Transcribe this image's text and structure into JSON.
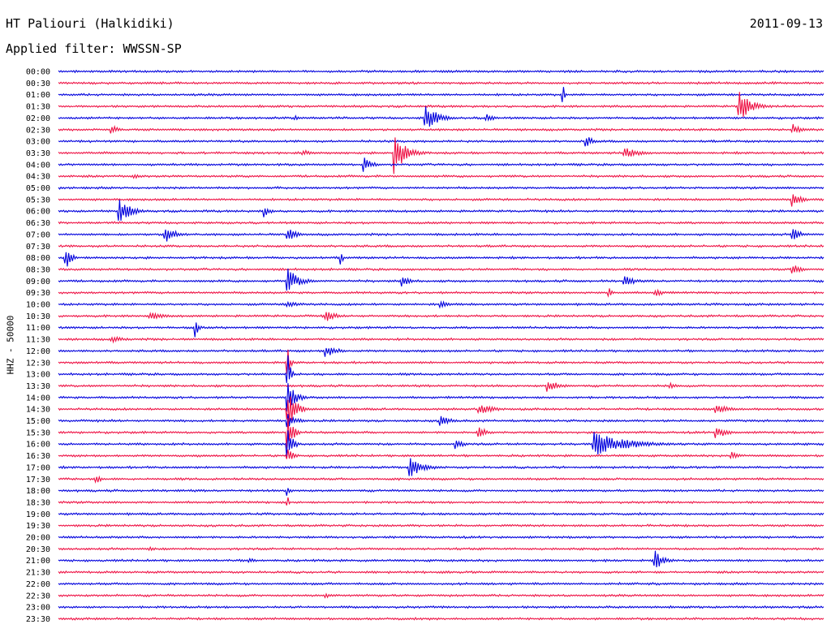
{
  "header": {
    "station": "HT Paliouri (Halkidiki)",
    "date": "2011-09-13",
    "filter": "Applied filter: WWSSN-SP"
  },
  "colors": {
    "trace_a": "#0000dd",
    "trace_b": "#ee1144",
    "text": "#000000",
    "background": "#ffffff"
  },
  "chart_data": {
    "type": "line",
    "title": "HT Paliouri (Halkidiki)",
    "subtitle": "Applied filter: WWSSN-SP",
    "date": "2011-09-13",
    "ylabel": "HHZ - 50000",
    "xlabel": "",
    "grid": false,
    "legend": "none",
    "traces": [
      {
        "label": "00:00",
        "color": "#0000dd",
        "events": []
      },
      {
        "label": "00:30",
        "color": "#ee1144",
        "events": []
      },
      {
        "label": "01:00",
        "color": "#0000dd",
        "events": [
          {
            "t": 0.66,
            "amp": 10,
            "dur": 0.005
          }
        ]
      },
      {
        "label": "01:30",
        "color": "#ee1144",
        "events": [
          {
            "t": 0.89,
            "amp": 22,
            "dur": 0.04
          }
        ]
      },
      {
        "label": "02:00",
        "color": "#0000dd",
        "events": [
          {
            "t": 0.48,
            "amp": 20,
            "dur": 0.04
          },
          {
            "t": 0.31,
            "amp": 4,
            "dur": 0.02
          },
          {
            "t": 0.56,
            "amp": 5,
            "dur": 0.03
          }
        ]
      },
      {
        "label": "02:30",
        "color": "#ee1144",
        "events": [
          {
            "t": 0.07,
            "amp": 7,
            "dur": 0.02
          },
          {
            "t": 0.96,
            "amp": 7,
            "dur": 0.03
          }
        ]
      },
      {
        "label": "03:00",
        "color": "#0000dd",
        "events": [
          {
            "t": 0.69,
            "amp": 7,
            "dur": 0.03
          }
        ]
      },
      {
        "label": "03:30",
        "color": "#ee1144",
        "events": [
          {
            "t": 0.44,
            "amp": 26,
            "dur": 0.04
          },
          {
            "t": 0.32,
            "amp": 4,
            "dur": 0.03
          },
          {
            "t": 0.74,
            "amp": 7,
            "dur": 0.06
          }
        ]
      },
      {
        "label": "04:00",
        "color": "#0000dd",
        "events": [
          {
            "t": 0.4,
            "amp": 9,
            "dur": 0.03
          }
        ]
      },
      {
        "label": "04:30",
        "color": "#ee1144",
        "events": [
          {
            "t": 0.1,
            "amp": 4,
            "dur": 0.02
          }
        ]
      },
      {
        "label": "05:00",
        "color": "#0000dd",
        "events": []
      },
      {
        "label": "05:30",
        "color": "#ee1144",
        "events": [
          {
            "t": 0.96,
            "amp": 9,
            "dur": 0.03
          }
        ]
      },
      {
        "label": "06:00",
        "color": "#0000dd",
        "events": [
          {
            "t": 0.08,
            "amp": 16,
            "dur": 0.04
          },
          {
            "t": 0.27,
            "amp": 8,
            "dur": 0.02
          }
        ]
      },
      {
        "label": "06:30",
        "color": "#ee1144",
        "events": []
      },
      {
        "label": "07:00",
        "color": "#0000dd",
        "events": [
          {
            "t": 0.14,
            "amp": 11,
            "dur": 0.04
          },
          {
            "t": 0.3,
            "amp": 9,
            "dur": 0.03
          },
          {
            "t": 0.96,
            "amp": 9,
            "dur": 0.03
          }
        ]
      },
      {
        "label": "07:30",
        "color": "#ee1144",
        "events": []
      },
      {
        "label": "08:00",
        "color": "#0000dd",
        "events": [
          {
            "t": 0.01,
            "amp": 14,
            "dur": 0.02
          },
          {
            "t": 0.37,
            "amp": 10,
            "dur": 0.005
          }
        ]
      },
      {
        "label": "08:30",
        "color": "#ee1144",
        "events": [
          {
            "t": 0.96,
            "amp": 6,
            "dur": 0.04
          }
        ]
      },
      {
        "label": "09:00",
        "color": "#0000dd",
        "events": [
          {
            "t": 0.3,
            "amp": 16,
            "dur": 0.04
          },
          {
            "t": 0.45,
            "amp": 7,
            "dur": 0.03
          },
          {
            "t": 0.74,
            "amp": 7,
            "dur": 0.04
          }
        ]
      },
      {
        "label": "09:30",
        "color": "#ee1144",
        "events": [
          {
            "t": 0.72,
            "amp": 9,
            "dur": 0.01
          },
          {
            "t": 0.78,
            "amp": 5,
            "dur": 0.03
          }
        ]
      },
      {
        "label": "10:00",
        "color": "#0000dd",
        "events": [
          {
            "t": 0.3,
            "amp": 4,
            "dur": 0.05
          },
          {
            "t": 0.5,
            "amp": 4,
            "dur": 0.05
          }
        ]
      },
      {
        "label": "10:30",
        "color": "#ee1144",
        "events": [
          {
            "t": 0.12,
            "amp": 5,
            "dur": 0.05
          },
          {
            "t": 0.35,
            "amp": 7,
            "dur": 0.04
          }
        ]
      },
      {
        "label": "11:00",
        "color": "#0000dd",
        "events": [
          {
            "t": 0.18,
            "amp": 12,
            "dur": 0.01
          }
        ]
      },
      {
        "label": "11:30",
        "color": "#ee1144",
        "events": [
          {
            "t": 0.07,
            "amp": 4,
            "dur": 0.05
          }
        ]
      },
      {
        "label": "12:00",
        "color": "#0000dd",
        "events": [
          {
            "t": 0.35,
            "amp": 8,
            "dur": 0.04
          }
        ]
      },
      {
        "label": "12:30",
        "color": "#ee1144",
        "events": [
          {
            "t": 0.3,
            "amp": 16,
            "dur": 0.01
          }
        ]
      },
      {
        "label": "13:00",
        "color": "#0000dd",
        "events": [
          {
            "t": 0.3,
            "amp": 24,
            "dur": 0.01
          }
        ]
      },
      {
        "label": "13:30",
        "color": "#ee1144",
        "events": [
          {
            "t": 0.64,
            "amp": 8,
            "dur": 0.04
          },
          {
            "t": 0.8,
            "amp": 5,
            "dur": 0.02
          }
        ]
      },
      {
        "label": "14:00",
        "color": "#0000dd",
        "events": [
          {
            "t": 0.3,
            "amp": 18,
            "dur": 0.03
          }
        ]
      },
      {
        "label": "14:30",
        "color": "#ee1144",
        "events": [
          {
            "t": 0.3,
            "amp": 26,
            "dur": 0.03
          },
          {
            "t": 0.55,
            "amp": 6,
            "dur": 0.06
          },
          {
            "t": 0.86,
            "amp": 6,
            "dur": 0.05
          }
        ]
      },
      {
        "label": "15:00",
        "color": "#0000dd",
        "events": [
          {
            "t": 0.3,
            "amp": 10,
            "dur": 0.03
          },
          {
            "t": 0.5,
            "amp": 6,
            "dur": 0.04
          }
        ]
      },
      {
        "label": "15:30",
        "color": "#ee1144",
        "events": [
          {
            "t": 0.3,
            "amp": 22,
            "dur": 0.02
          },
          {
            "t": 0.55,
            "amp": 8,
            "dur": 0.03
          },
          {
            "t": 0.86,
            "amp": 8,
            "dur": 0.04
          }
        ]
      },
      {
        "label": "16:00",
        "color": "#0000dd",
        "events": [
          {
            "t": 0.7,
            "amp": 16,
            "dur": 0.12
          },
          {
            "t": 0.3,
            "amp": 18,
            "dur": 0.02
          },
          {
            "t": 0.52,
            "amp": 6,
            "dur": 0.03
          }
        ]
      },
      {
        "label": "16:30",
        "color": "#ee1144",
        "events": [
          {
            "t": 0.3,
            "amp": 10,
            "dur": 0.02
          },
          {
            "t": 0.88,
            "amp": 5,
            "dur": 0.03
          }
        ]
      },
      {
        "label": "17:00",
        "color": "#0000dd",
        "events": [
          {
            "t": 0.46,
            "amp": 12,
            "dur": 0.05
          }
        ]
      },
      {
        "label": "17:30",
        "color": "#ee1144",
        "events": [
          {
            "t": 0.05,
            "amp": 5,
            "dur": 0.02
          }
        ]
      },
      {
        "label": "18:00",
        "color": "#0000dd",
        "events": [
          {
            "t": 0.3,
            "amp": 7,
            "dur": 0.01
          }
        ]
      },
      {
        "label": "18:30",
        "color": "#ee1144",
        "events": [
          {
            "t": 0.3,
            "amp": 6,
            "dur": 0.005
          }
        ]
      },
      {
        "label": "19:00",
        "color": "#0000dd",
        "events": []
      },
      {
        "label": "19:30",
        "color": "#ee1144",
        "events": []
      },
      {
        "label": "20:00",
        "color": "#0000dd",
        "events": []
      },
      {
        "label": "20:30",
        "color": "#ee1144",
        "events": [
          {
            "t": 0.12,
            "amp": 3,
            "dur": 0.02
          }
        ]
      },
      {
        "label": "21:00",
        "color": "#0000dd",
        "events": [
          {
            "t": 0.78,
            "amp": 12,
            "dur": 0.03
          },
          {
            "t": 0.25,
            "amp": 3,
            "dur": 0.03
          }
        ]
      },
      {
        "label": "21:30",
        "color": "#ee1144",
        "events": []
      },
      {
        "label": "22:00",
        "color": "#0000dd",
        "events": []
      },
      {
        "label": "22:30",
        "color": "#ee1144",
        "events": [
          {
            "t": 0.35,
            "amp": 3,
            "dur": 0.02
          }
        ]
      },
      {
        "label": "23:00",
        "color": "#0000dd",
        "events": []
      },
      {
        "label": "23:30",
        "color": "#ee1144",
        "events": []
      }
    ]
  }
}
